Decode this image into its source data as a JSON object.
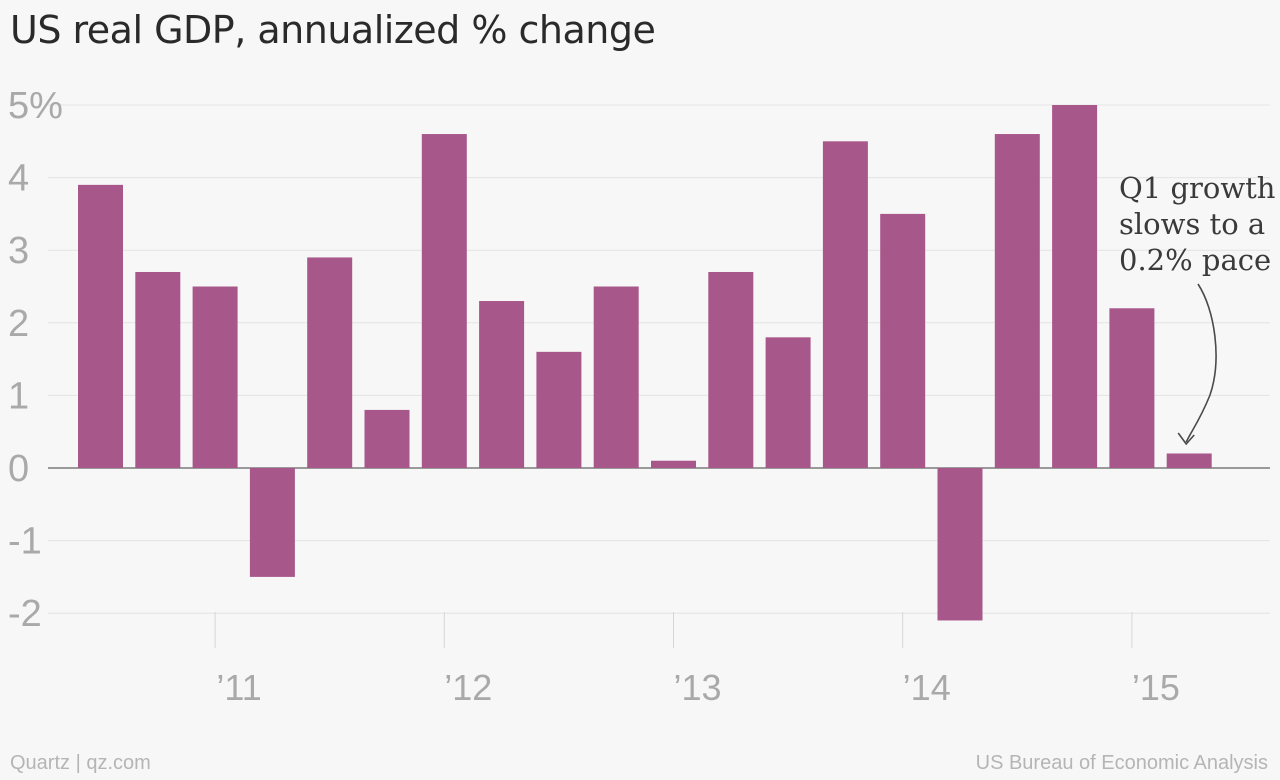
{
  "chart_data": {
    "type": "bar",
    "title": "US real GDP, annualized % change",
    "xlabel": "",
    "ylabel": "",
    "ylim": [
      -2.3,
      5.1
    ],
    "yticks": [
      {
        "value": 5,
        "label": "5%"
      },
      {
        "value": 4,
        "label": "4"
      },
      {
        "value": 3,
        "label": "3"
      },
      {
        "value": 2,
        "label": "2"
      },
      {
        "value": 1,
        "label": "1"
      },
      {
        "value": 0,
        "label": "0"
      },
      {
        "value": -1,
        "label": "-1"
      },
      {
        "value": -2,
        "label": "-2"
      }
    ],
    "xticks": [
      {
        "label": "’11",
        "index": 2.5
      },
      {
        "label": "’12",
        "index": 6.5
      },
      {
        "label": "’13",
        "index": 10.5
      },
      {
        "label": "’14",
        "index": 14.5
      },
      {
        "label": "’15",
        "index": 18.5
      }
    ],
    "values": [
      3.9,
      2.7,
      2.5,
      -1.5,
      2.9,
      0.8,
      4.6,
      2.3,
      1.6,
      2.5,
      0.1,
      2.7,
      1.8,
      4.5,
      3.5,
      -2.1,
      4.6,
      5.0,
      2.2,
      0.2
    ],
    "bar_color": "#a8578a",
    "grid": true,
    "annotation": {
      "lines": [
        "Q1 growth",
        "slows to a",
        "0.2% pace"
      ],
      "target_index": 19
    }
  },
  "footer": {
    "left": "Quartz | qz.com",
    "right": "US Bureau of Economic Analysis"
  }
}
